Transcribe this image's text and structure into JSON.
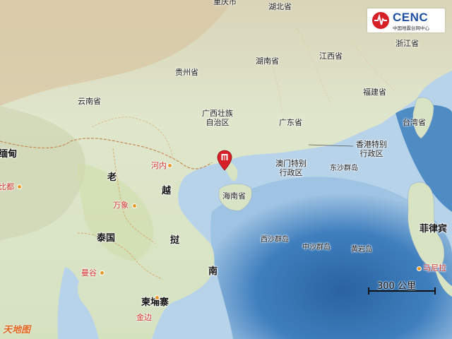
{
  "logo": {
    "brand": "CENC",
    "subtitle": "中国地震台网中心"
  },
  "labels": {
    "chongqing": "重庆市",
    "hubei": "湖北省",
    "hunan": "湖南省",
    "jiangxi": "江西省",
    "zhejiang": "浙江省",
    "guizhou": "贵州省",
    "yunnan": "云南省",
    "fujian": "福建省",
    "guangxi": "广西壮族\n自治区",
    "guangdong": "广东省",
    "taiwan": "台湾省",
    "hongkong": "香港特别\n行政区",
    "macau": "澳门特别\n行政区",
    "dongsha": "东沙群岛",
    "hainan": "海南省",
    "xisha": "西沙群岛",
    "zhongsha": "中沙群岛",
    "huangyan": "黄岩岛",
    "myanmar": "缅甸",
    "laos": "老",
    "vietnam_1": "越",
    "vietnam_2": "挝",
    "vietnam_3": "南",
    "thailand": "泰国",
    "cambodia": "柬埔寨",
    "philippines": "菲律宾",
    "hanoi": "河内",
    "vientiane": "万象",
    "bangkok": "曼谷",
    "phnompenh": "金边",
    "naypyidaw": "比都",
    "manila": "马尼拉"
  },
  "scale": {
    "label": "300 公里"
  },
  "watermark": "天地图",
  "colors": {
    "sea_deep": "#2f6fae",
    "sea_shallow": "#a9c9e4",
    "land": "#e7ebd6",
    "epicenter": "#d61f26"
  },
  "icons": {
    "epicenter": "epicenter-marker-icon",
    "logo": "cenc-logo-icon"
  }
}
